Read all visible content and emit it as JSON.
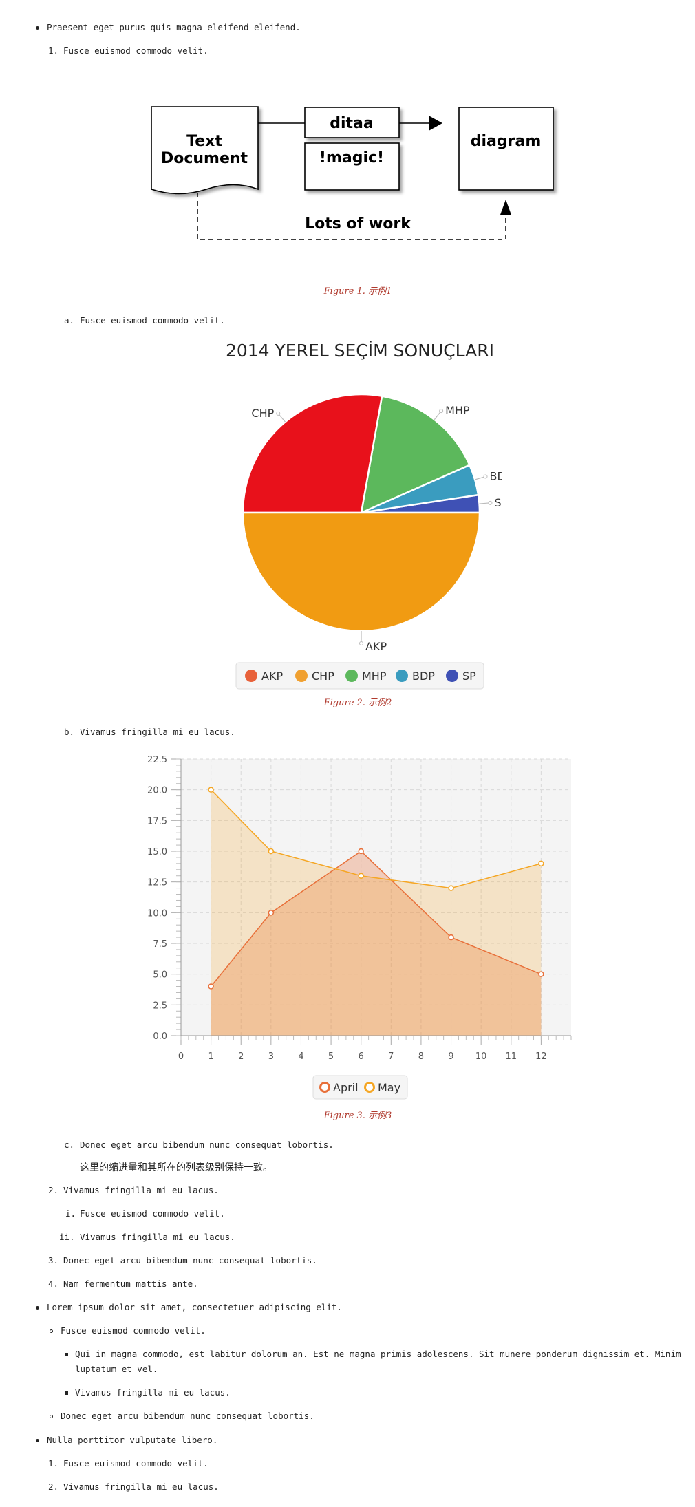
{
  "list": {
    "b1": "Praesent eget purus quis magna eleifend eleifend.",
    "b1_1_num": "1.",
    "b1_1": "Fusce euismod commodo velit.",
    "fig1_caption": "Figure 1. 示例1",
    "b1_1_a_num": "a.",
    "b1_1_a": "Fusce euismod commodo velit.",
    "fig2_caption": "Figure 2. 示例2",
    "b1_1_b_num": "b.",
    "b1_1_b": "Vivamus fringilla mi eu lacus.",
    "fig3_caption": "Figure 3. 示例3",
    "b1_1_c_num": "c.",
    "b1_1_c": "Donec eget arcu bibendum nunc consequat lobortis.",
    "b1_1_c_note": "这里的缩进量和其所在的列表级别保持一致。",
    "b1_2_num": "2.",
    "b1_2": "Vivamus fringilla mi eu lacus.",
    "b1_2_i_num": "i.",
    "b1_2_i": "Fusce euismod commodo velit.",
    "b1_2_ii_num": "ii.",
    "b1_2_ii": "Vivamus fringilla mi eu lacus.",
    "b1_3_num": "3.",
    "b1_3": "Donec eget arcu bibendum nunc consequat lobortis.",
    "b1_4_num": "4.",
    "b1_4": "Nam fermentum mattis ante.",
    "b2": "Lorem ipsum dolor sit amet, consectetuer adipiscing elit.",
    "b2_1": "Fusce euismod commodo velit.",
    "b2_1_1_line1": "Qui in magna commodo, est labitur dolorum an. Est ne magna primis adolescens. Sit munere ponderum dignissim et. Minim",
    "b2_1_1_line2": "luptatum et vel.",
    "b2_1_2": "Vivamus fringilla mi eu lacus.",
    "b2_2": "Donec eget arcu bibendum nunc consequat lobortis.",
    "b3": "Nulla porttitor vulputate libero.",
    "b3_1_num": "1.",
    "b3_1": "Fusce euismod commodo velit.",
    "b3_2_num": "2.",
    "b3_2": "Vivamus fringilla mi eu lacus."
  },
  "diagram": {
    "text_document_line1": "Text",
    "text_document_line2": "Document",
    "ditaa": "ditaa",
    "magic": "!magic!",
    "diagram": "diagram",
    "lots_of_work": "Lots of work"
  },
  "chart_data": [
    {
      "type": "pie",
      "title": "2014 YEREL SEÇİM SONUÇLARI",
      "legend_position": "bottom",
      "slices": [
        {
          "name": "SP",
          "value": 2.4,
          "color": "#3f51b5"
        },
        {
          "name": "BDP",
          "value": 4.2,
          "color": "#3a9cbf"
        },
        {
          "name": "MHP",
          "value": 15.6,
          "color": "#5cb85c"
        },
        {
          "name": "CHP",
          "value": 27.8,
          "color": "#e8111b"
        },
        {
          "name": "AKP",
          "value": 50.0,
          "color": "#f19b12"
        }
      ],
      "legend": [
        {
          "name": "AKP",
          "color": "#e8613a"
        },
        {
          "name": "CHP",
          "color": "#f0a030"
        },
        {
          "name": "MHP",
          "color": "#5cb85c"
        },
        {
          "name": "BDP",
          "color": "#3a9cbf"
        },
        {
          "name": "SP",
          "color": "#3f51b5"
        }
      ]
    },
    {
      "type": "area",
      "x_ticks": [
        "0",
        "1",
        "2",
        "3",
        "4",
        "5",
        "6",
        "7",
        "8",
        "9",
        "10",
        "11",
        "12"
      ],
      "y_ticks": [
        "0.0",
        "2.5",
        "5.0",
        "7.5",
        "10.0",
        "12.5",
        "15.0",
        "17.5",
        "20.0",
        "22.5"
      ],
      "xlim": [
        0,
        13
      ],
      "ylim": [
        0,
        22.5
      ],
      "grid": true,
      "legend_position": "bottom",
      "series": [
        {
          "name": "April",
          "color": "#e8703a",
          "x": [
            1,
            3,
            6,
            9,
            12
          ],
          "y": [
            4,
            10,
            15,
            8,
            5
          ]
        },
        {
          "name": "May",
          "color": "#f5a623",
          "x": [
            1,
            3,
            6,
            9,
            12
          ],
          "y": [
            20,
            15,
            13,
            12,
            14
          ]
        }
      ]
    }
  ]
}
